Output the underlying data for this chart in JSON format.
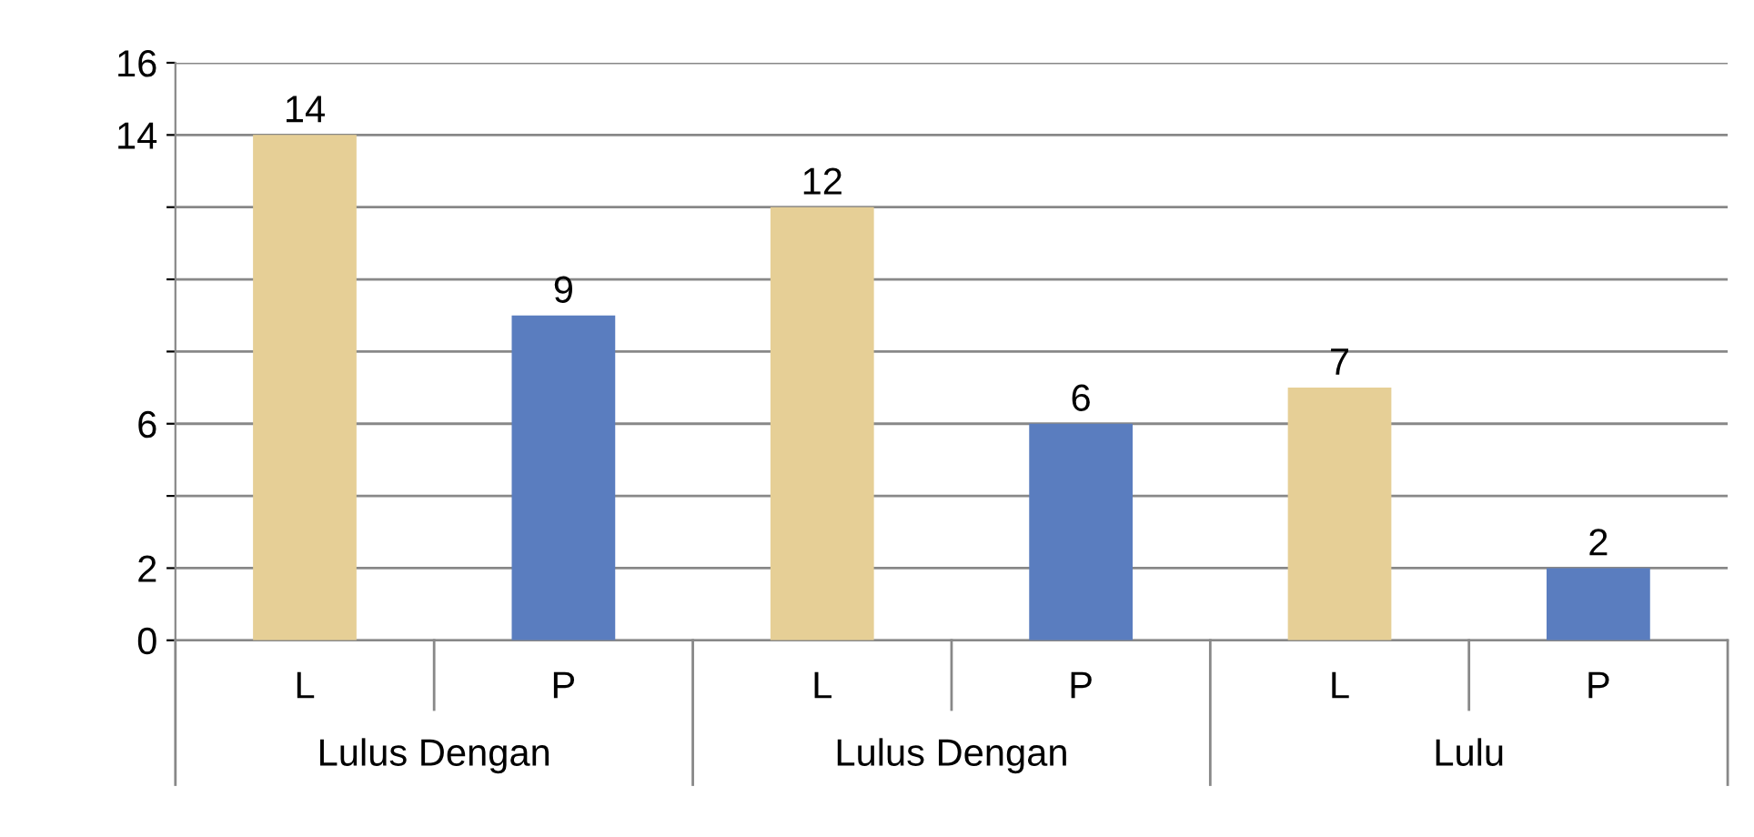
{
  "chart_data": {
    "type": "bar",
    "categories": [
      "L",
      "P",
      "L",
      "P",
      "L",
      "P"
    ],
    "values": [
      14,
      9,
      12,
      6,
      7,
      2
    ],
    "colors": [
      "#e6cf96",
      "#5a7dbf",
      "#e6cf96",
      "#5a7dbf",
      "#e6cf96",
      "#5a7dbf"
    ],
    "ylim": [
      0,
      16
    ],
    "yticks": [
      0,
      2,
      {
        "value": 4,
        "label": null
      },
      6,
      {
        "value": 8,
        "label": null
      },
      {
        "value": 10,
        "label": null
      },
      {
        "value": 12,
        "label": null
      },
      14,
      16
    ],
    "grid": "y",
    "data_labels": true,
    "annotations": [
      "Lulus Dengan",
      "Lulus Dengan",
      "Lulu"
    ]
  }
}
